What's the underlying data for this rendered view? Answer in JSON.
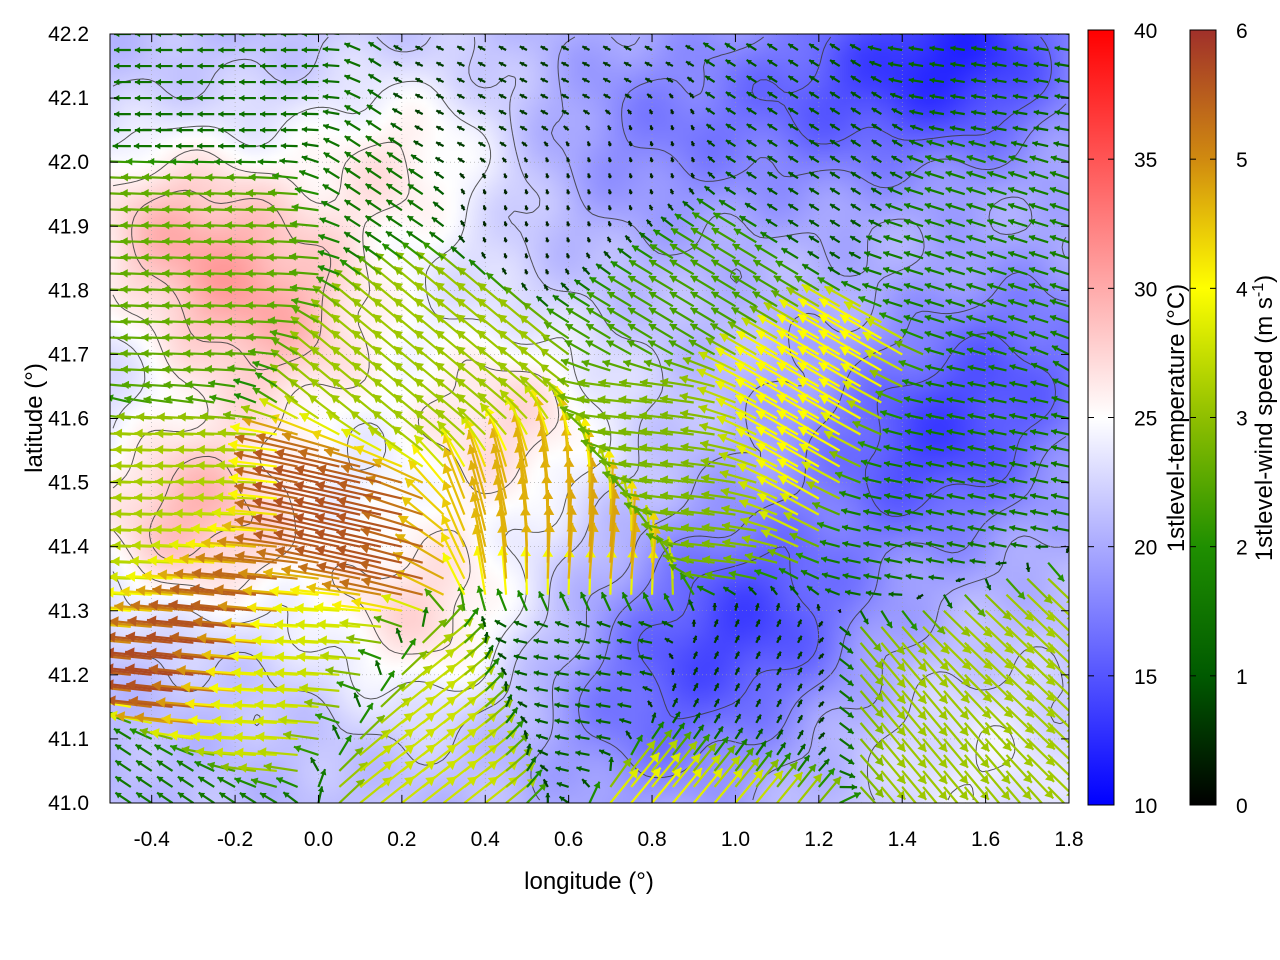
{
  "chart_data": {
    "type": "heatmap",
    "xlabel": "longitude (°)",
    "ylabel": "latitude (°)",
    "xlim": [
      -0.5,
      1.8
    ],
    "ylim": [
      41.0,
      42.2
    ],
    "x_ticks": [
      "-0.4",
      "-0.2",
      "0.0",
      "0.2",
      "0.4",
      "0.6",
      "0.8",
      "1.0",
      "1.2",
      "1.4",
      "1.6",
      "1.8"
    ],
    "y_ticks": [
      "41.0",
      "41.1",
      "41.2",
      "41.3",
      "41.4",
      "41.5",
      "41.6",
      "41.7",
      "41.8",
      "41.9",
      "42.0",
      "42.1",
      "42.2"
    ],
    "grid": true,
    "colorbars": [
      {
        "label_main": "1stlevel-temperature (°C)",
        "range": [
          10,
          40
        ],
        "ticks": [
          "10",
          "15",
          "20",
          "25",
          "30",
          "35",
          "40"
        ],
        "colors": [
          "#0000ff",
          "#ffffff",
          "#ff0000"
        ]
      },
      {
        "label_main": "1stlevel-wind speed (m s",
        "label_sup": "-1",
        "label_end": ")",
        "range": [
          0,
          6
        ],
        "ticks": [
          "0",
          "1",
          "2",
          "3",
          "4",
          "5",
          "6"
        ],
        "colors": [
          "#000000",
          "#005a00",
          "#1f8f00",
          "#8fbf00",
          "#ffff00",
          "#d08a10",
          "#a0302a"
        ]
      }
    ],
    "temperature_field": {
      "note_units": "°C",
      "background": 21,
      "features": [
        {
          "lon": -0.3,
          "lat": 41.45,
          "value": 29
        },
        {
          "lon": -0.1,
          "lat": 41.75,
          "value": 28
        },
        {
          "lon": -0.35,
          "lat": 41.9,
          "value": 28
        },
        {
          "lon": 0.45,
          "lat": 41.6,
          "value": 27
        },
        {
          "lon": 0.25,
          "lat": 41.3,
          "value": 27
        },
        {
          "lon": 0.2,
          "lat": 42.0,
          "value": 26
        },
        {
          "lon": 1.55,
          "lat": 42.17,
          "value": 13
        },
        {
          "lon": 1.2,
          "lat": 42.1,
          "value": 17
        },
        {
          "lon": 0.8,
          "lat": 42.05,
          "value": 18
        },
        {
          "lon": 1.45,
          "lat": 41.55,
          "value": 15
        },
        {
          "lon": 1.05,
          "lat": 41.3,
          "value": 15
        },
        {
          "lon": 0.8,
          "lat": 41.15,
          "value": 17
        },
        {
          "lon": 1.7,
          "lat": 41.7,
          "value": 17
        },
        {
          "lon": 1.6,
          "lat": 41.05,
          "value": 24
        }
      ]
    },
    "wind_field": {
      "note_units": "m s-1, vector components u (east) and v (north)",
      "grid_step_lon": 0.05,
      "grid_step_lat": 0.025,
      "regions": [
        {
          "lon": -0.3,
          "lat": 41.4,
          "u": -3.2,
          "v": 0.1
        },
        {
          "lon": -0.35,
          "lat": 41.85,
          "u": -2.6,
          "v": 0.1
        },
        {
          "lon": -0.3,
          "lat": 42.15,
          "u": -1.4,
          "v": 0.0
        },
        {
          "lon": 0.0,
          "lat": 41.25,
          "u": -3.6,
          "v": 0.2
        },
        {
          "lon": -0.2,
          "lat": 41.32,
          "u": -5.8,
          "v": 0.6
        },
        {
          "lon": 0.15,
          "lat": 41.42,
          "u": -5.5,
          "v": 1.2
        },
        {
          "lon": 0.45,
          "lat": 41.45,
          "u": -1.5,
          "v": 4.5
        },
        {
          "lon": 0.55,
          "lat": 41.42,
          "u": 0.5,
          "v": 4.8
        },
        {
          "lon": 0.3,
          "lat": 41.62,
          "u": -2.4,
          "v": 2.0
        },
        {
          "lon": 0.3,
          "lat": 41.15,
          "u": 2.8,
          "v": 2.2
        },
        {
          "lon": 0.55,
          "lat": 41.2,
          "u": -1.2,
          "v": 0.2
        },
        {
          "lon": 0.9,
          "lat": 41.55,
          "u": -2.8,
          "v": 0.3
        },
        {
          "lon": 0.9,
          "lat": 41.8,
          "u": -2.0,
          "v": 1.2
        },
        {
          "lon": 1.15,
          "lat": 41.6,
          "u": -3.5,
          "v": 2.0
        },
        {
          "lon": 0.7,
          "lat": 41.95,
          "u": -0.1,
          "v": 0.4
        },
        {
          "lon": 0.55,
          "lat": 42.15,
          "u": -0.6,
          "v": 0.3
        },
        {
          "lon": 1.2,
          "lat": 42.0,
          "u": -0.8,
          "v": 0.5
        },
        {
          "lon": 1.5,
          "lat": 41.5,
          "u": -1.5,
          "v": 0.3
        },
        {
          "lon": 1.6,
          "lat": 41.9,
          "u": -1.6,
          "v": 0.5
        },
        {
          "lon": 1.65,
          "lat": 42.15,
          "u": -1.2,
          "v": 0.2
        },
        {
          "lon": 1.05,
          "lat": 41.1,
          "u": 0.3,
          "v": 0.6
        },
        {
          "lon": 1.45,
          "lat": 41.1,
          "u": 2.0,
          "v": -2.4
        },
        {
          "lon": 1.7,
          "lat": 41.2,
          "u": 2.3,
          "v": -2.2
        },
        {
          "lon": 1.0,
          "lat": 41.0,
          "u": 2.5,
          "v": 3.0
        }
      ]
    }
  }
}
